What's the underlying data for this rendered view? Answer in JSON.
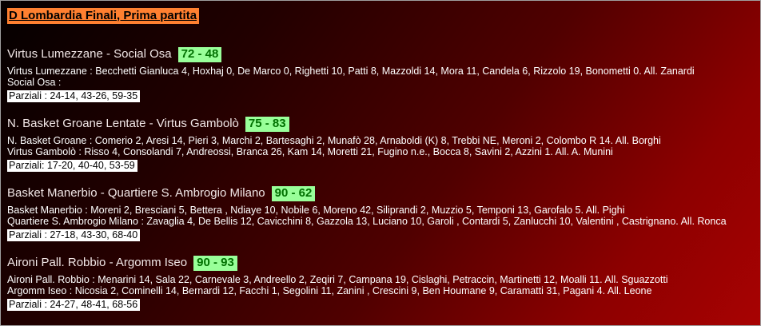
{
  "page": {
    "title": "D Lombardia Finali, Prima partita"
  },
  "colors": {
    "title_highlight_bg": "#ff8030",
    "title_text": "#000000",
    "score_badge_bg": "#99ff99",
    "score_badge_text": "#007000",
    "partials_bg": "#ffffff",
    "partials_text": "#000000",
    "background_dark": "#040000",
    "background_red": "#a80202"
  },
  "matches": [
    {
      "header": "Virtus Lumezzane - Social Osa",
      "score": "72 - 48",
      "home_line": "Virtus Lumezzane : Becchetti Gianluca 4, Hoxhaj 0, De Marco 0, Righetti 10, Patti 8, Mazzoldi 14, Mora 11, Candela 6, Rizzolo 19, Bonometti 0. All. Zanardi",
      "away_line": "Social Osa :",
      "partials": "Parziali : 24-14, 43-26, 59-35"
    },
    {
      "header": "N. Basket Groane Lentate - Virtus Gambolò",
      "score": "75 - 83",
      "home_line": "N. Basket Groane : Comerio 2, Aresi 14, Pieri 3, Marchi 2, Bartesaghi 2, Munafò 28, Arnaboldi (K) 8, Trebbi NE, Meroni 2, Colombo R 14. All. Borghi",
      "away_line": "Virtus Gambolò : Risso 4, Consolandi 7, Andreossi, Branca 26, Kam 14, Moretti 21, Fugino n.e., Bocca 8, Savini 2, Azzini 1. All. A. Munini",
      "partials": "Parziali: 17-20, 40-40, 53-59"
    },
    {
      "header": "Basket Manerbio - Quartiere S. Ambrogio Milano",
      "score": "90 - 62",
      "home_line": "Basket Manerbio : Moreni 2, Bresciani 5, Bettera , Ndiaye 10, Nobile 6, Moreno 42, Siliprandi 2, Muzzio 5, Temponi 13, Garofalo 5. All. Pighi",
      "away_line": "Quartiere S. Ambrogio Milano : Zavaglia 4, De Bellis 12, Cavicchini 8, Gazzola 13, Luciano 10, Garoli , Contardi 5, Zanlucchi 10, Valentini , Castrignano. All. Ronca",
      "partials": "Parziali : 27-18, 43-30, 68-40"
    },
    {
      "header": "Aironi Pall. Robbio - Argomm Iseo",
      "score": "90 - 93",
      "home_line": "Aironi Pall. Robbio : Menarini 14, Sala 22, Carnevale 3, Andreello 2, Zeqiri 7, Campana 19, Cislaghi, Petraccin, Martinetti 12, Moalli 11. All. Sguazzotti",
      "away_line": "Argomm Iseo : Nicosia 2, Cominelli 14, Bernardi 12, Facchi 1, Segolini 11, Zanini , Crescini 9, Ben Houmane 9, Caramatti 31, Pagani 4. All. Leone",
      "partials": "Parziali : 24-27, 48-41, 68-56"
    }
  ]
}
